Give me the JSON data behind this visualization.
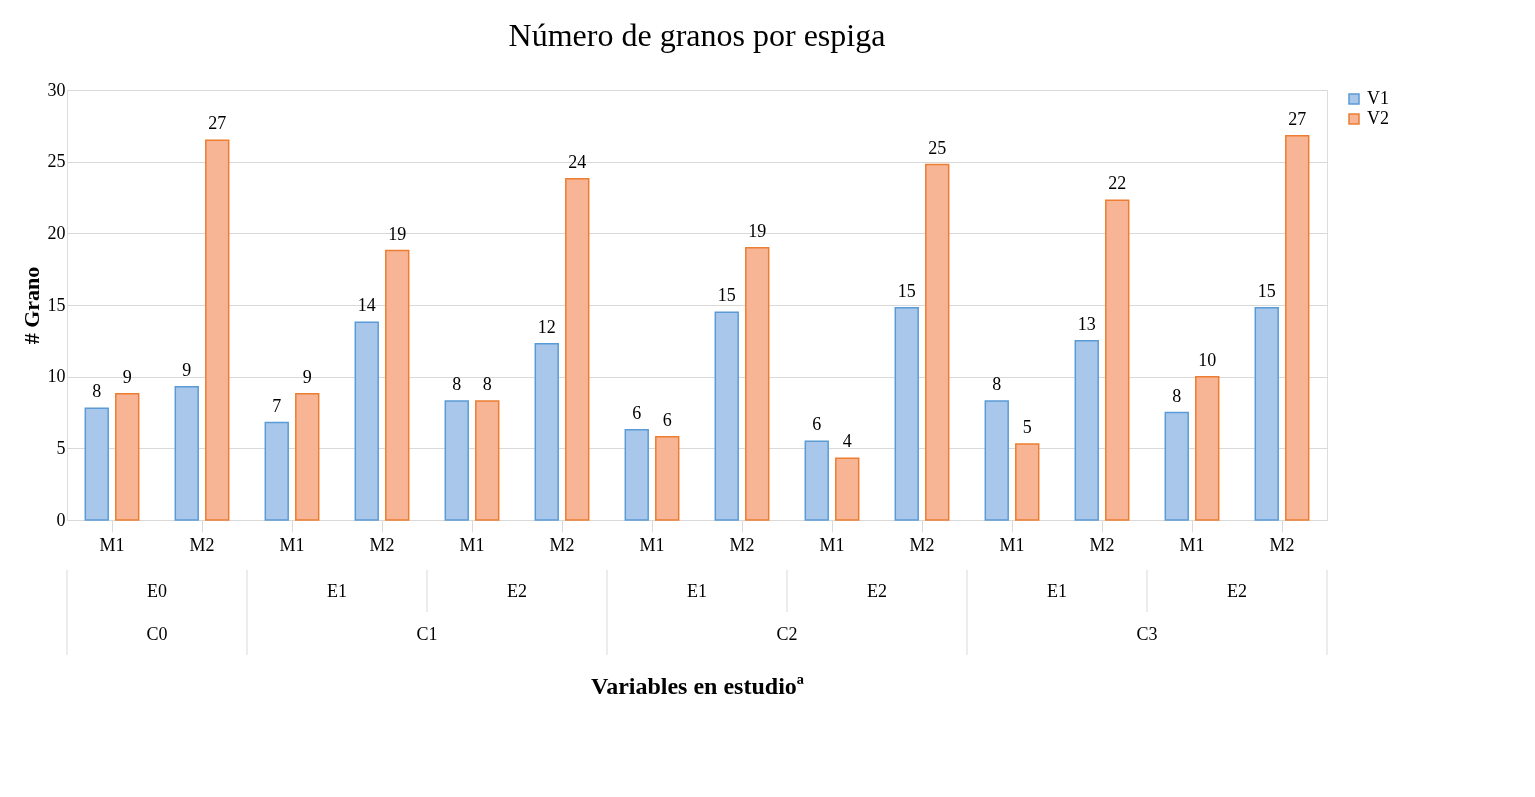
{
  "chart_data": {
    "type": "bar",
    "title": "Número de granos por espiga",
    "xlabel": "Variables en estudioª",
    "ylabel": "# Grano",
    "categories": [
      "M1",
      "M2",
      "M1",
      "M2",
      "M1",
      "M2",
      "M1",
      "M2",
      "M1",
      "M2",
      "M1",
      "M2",
      "M1",
      "M2"
    ],
    "series": [
      {
        "name": "V1",
        "color": "#a9c7ea",
        "values": [
          7.8,
          9.3,
          6.8,
          13.8,
          8.3,
          12.3,
          6.3,
          14.5,
          5.5,
          14.8,
          8.3,
          12.5,
          7.5,
          14.8
        ],
        "value_labels": [
          "8",
          "9",
          "7",
          "14",
          "8",
          "12",
          "6",
          "15",
          "6",
          "15",
          "8",
          "13",
          "8",
          "15"
        ]
      },
      {
        "name": "V2",
        "color": "#f7b595",
        "values": [
          8.8,
          26.5,
          8.8,
          18.8,
          8.3,
          23.8,
          5.8,
          19.0,
          4.3,
          24.8,
          5.3,
          22.3,
          10.0,
          26.8
        ],
        "value_labels": [
          "9",
          "27",
          "9",
          "19",
          "8",
          "24",
          "6",
          "19",
          "4",
          "25",
          "5",
          "22",
          "10",
          "27"
        ]
      }
    ],
    "annotations": [
      "E0",
      "E1",
      "E2",
      "E1",
      "E2",
      "E1",
      "E2",
      "C0",
      "C1",
      "C2",
      "C3"
    ],
    "ylim": [
      0,
      30
    ],
    "yticks": [
      0,
      5,
      10,
      15,
      20,
      25,
      30
    ],
    "grid": "y",
    "legend": "right"
  }
}
